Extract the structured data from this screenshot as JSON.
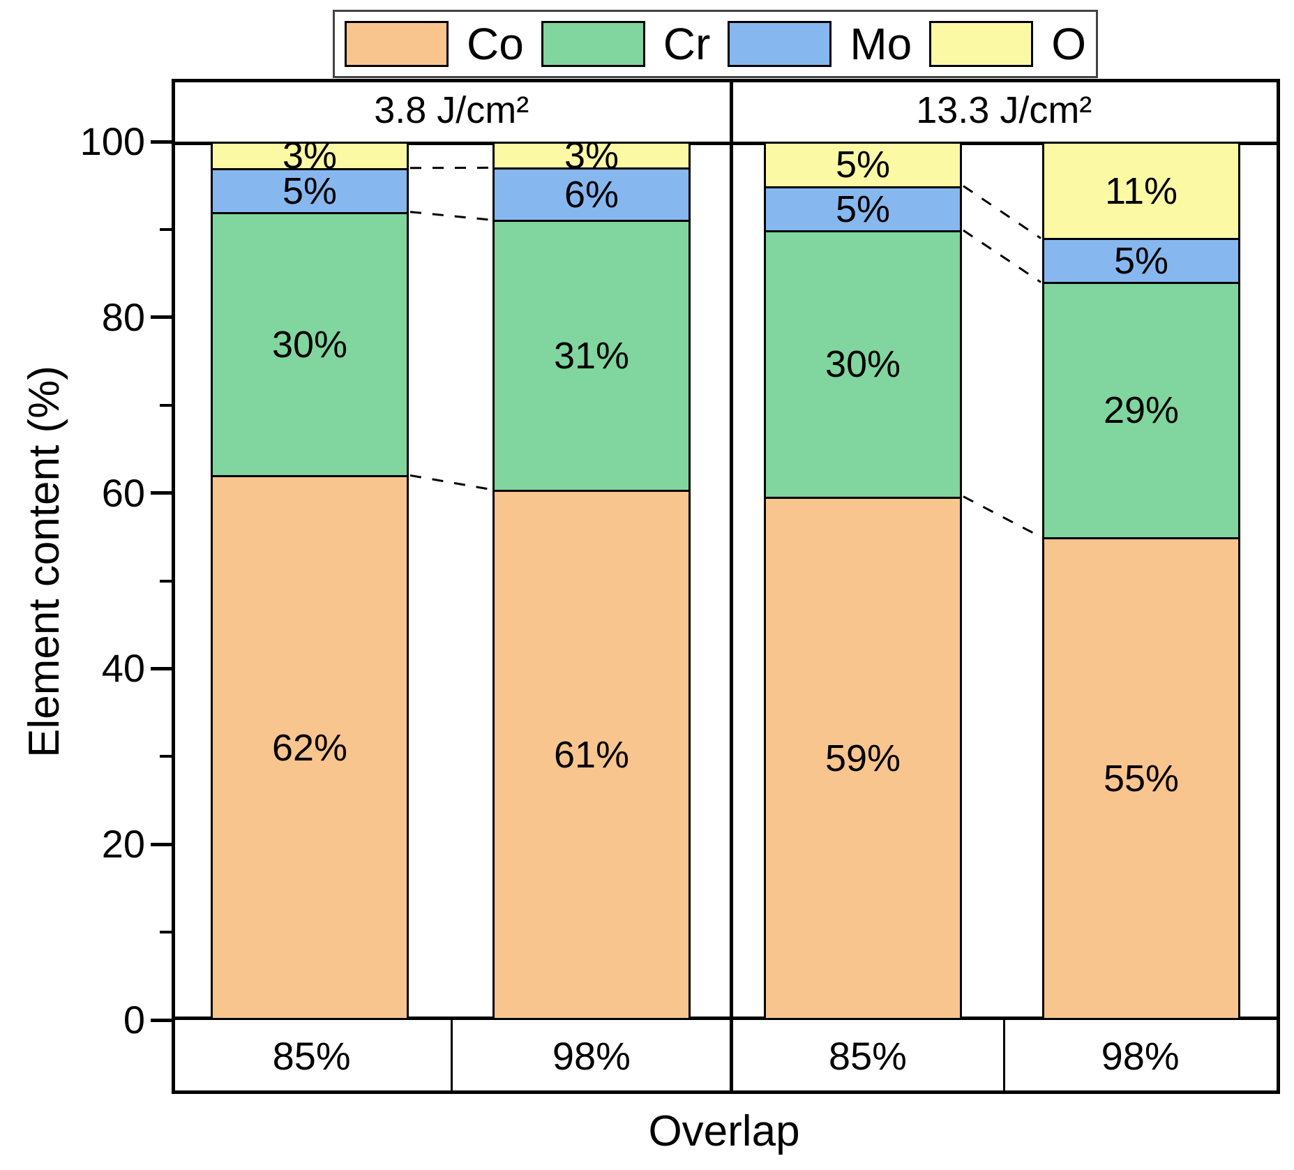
{
  "chart_data": {
    "type": "bar",
    "stacked": true,
    "title": "",
    "ylabel": "Element content (%)",
    "xlabel": "Overlap",
    "ylim": [
      0,
      100
    ],
    "grid": false,
    "ytick_labels": [
      "0",
      "20",
      "40",
      "60",
      "80",
      "100"
    ],
    "yticks_major": [
      0,
      20,
      40,
      60,
      80,
      100
    ],
    "yticks_minor": [
      10,
      30,
      50,
      70,
      90
    ],
    "series_order": [
      "Co",
      "Cr",
      "Mo",
      "O"
    ],
    "legend": {
      "position": "top",
      "entries": [
        {
          "label": "Co",
          "color": "#F9C58E"
        },
        {
          "label": "Cr",
          "color": "#80D69E"
        },
        {
          "label": "Mo",
          "color": "#87B7EF"
        },
        {
          "label": "O",
          "color": "#FBF9A4"
        }
      ]
    },
    "panels": [
      {
        "label": "3.8 J/cm²",
        "bars": [
          {
            "category": "85%",
            "values": {
              "Co": 62,
              "Cr": 30,
              "Mo": 5,
              "O": 3
            }
          },
          {
            "category": "98%",
            "values": {
              "Co": 61,
              "Cr": 31,
              "Mo": 6,
              "O": 3
            }
          }
        ]
      },
      {
        "label": "13.3 J/cm²",
        "bars": [
          {
            "category": "85%",
            "values": {
              "Co": 59,
              "Cr": 30,
              "Mo": 5,
              "O": 5
            }
          },
          {
            "category": "98%",
            "values": {
              "Co": 55,
              "Cr": 29,
              "Mo": 5,
              "O": 11
            }
          }
        ]
      }
    ],
    "value_label_suffix": "%",
    "connectors_style": "dashed",
    "colors": {
      "line": "#000000",
      "background": "#FFFFFF"
    }
  }
}
